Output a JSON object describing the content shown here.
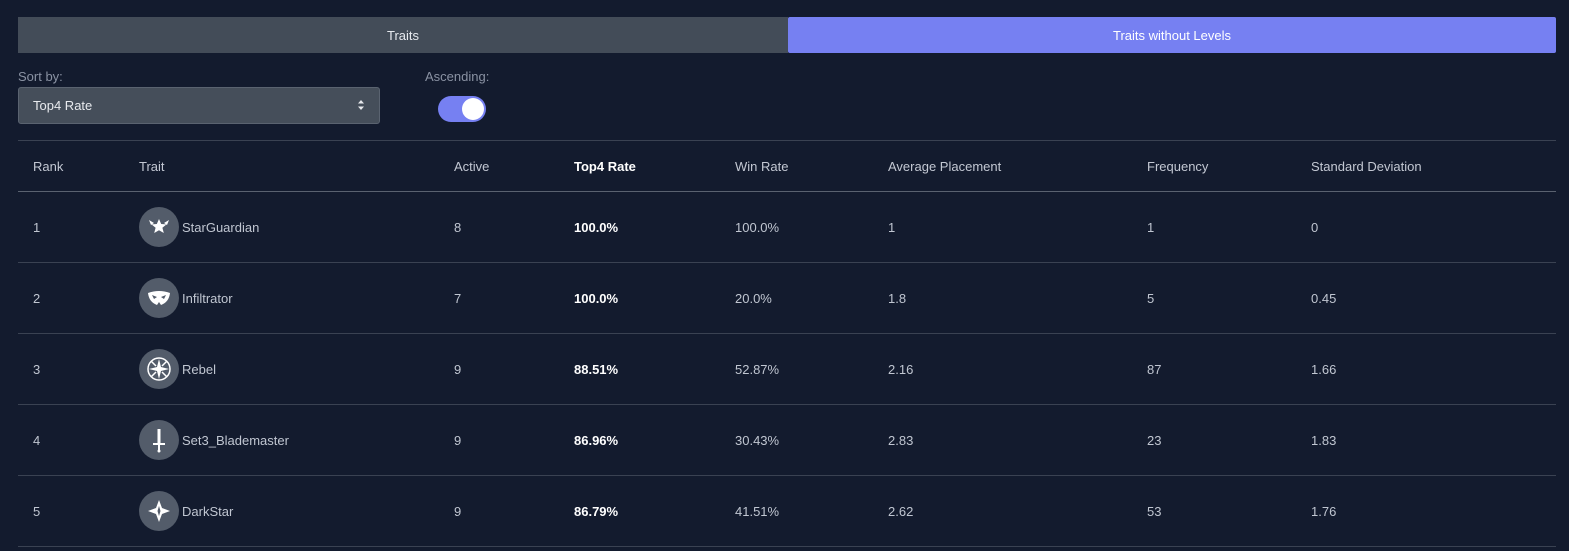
{
  "tabs": [
    {
      "label": "Traits"
    },
    {
      "label": "Traits without Levels"
    }
  ],
  "controls": {
    "sort_label": "Sort by:",
    "sort_value": "Top4 Rate",
    "ascending_label": "Ascending:",
    "ascending": true
  },
  "colors": {
    "accent": "#7680f2",
    "background": "#131b2e",
    "tab_inactive": "#434c58"
  },
  "table": {
    "headers": [
      "Rank",
      "Trait",
      "Active",
      "Top4 Rate",
      "Win Rate",
      "Average Placement",
      "Frequency",
      "Standard Deviation"
    ],
    "rows": [
      {
        "rank": "1",
        "icon": "star-guardian-icon",
        "trait": "StarGuardian",
        "active": "8",
        "top4": "100.0%",
        "win": "100.0%",
        "avg": "1",
        "freq": "1",
        "std": "0"
      },
      {
        "rank": "2",
        "icon": "infiltrator-icon",
        "trait": "Infiltrator",
        "active": "7",
        "top4": "100.0%",
        "win": "20.0%",
        "avg": "1.8",
        "freq": "5",
        "std": "0.45"
      },
      {
        "rank": "3",
        "icon": "rebel-icon",
        "trait": "Rebel",
        "active": "9",
        "top4": "88.51%",
        "win": "52.87%",
        "avg": "2.16",
        "freq": "87",
        "std": "1.66"
      },
      {
        "rank": "4",
        "icon": "blademaster-icon",
        "trait": "Set3_Blademaster",
        "active": "9",
        "top4": "86.96%",
        "win": "30.43%",
        "avg": "2.83",
        "freq": "23",
        "std": "1.83"
      },
      {
        "rank": "5",
        "icon": "dark-star-icon",
        "trait": "DarkStar",
        "active": "9",
        "top4": "86.79%",
        "win": "41.51%",
        "avg": "2.62",
        "freq": "53",
        "std": "1.76"
      }
    ]
  }
}
